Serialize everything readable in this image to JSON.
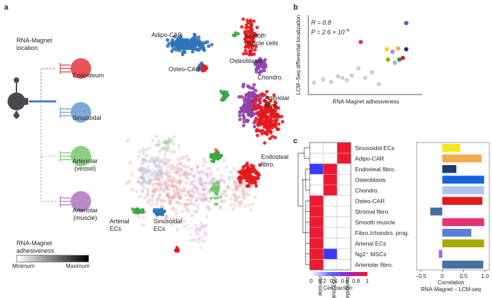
{
  "panel_a": {
    "label": "a",
    "location_title": "RNA-Magnet\nlocation",
    "locations": [
      {
        "name": "Endosteum",
        "color": "#e8545a"
      },
      {
        "name": "Sinusoidal",
        "color": "#7fa8d8"
      },
      {
        "name": "Arteriolar\n(vessel)",
        "color": "#8ccf84"
      },
      {
        "name": "Arteriolar\n(muscle)",
        "color": "#b98bcb"
      }
    ],
    "adhesiveness_title": "RNA-Magnet\nadhesiveness",
    "scale_min": "Minimum",
    "scale_max": "Maximum",
    "clusters": [
      {
        "name": "Adipo-CAR",
        "color": "#2f74b8"
      },
      {
        "name": "Smooth\nmuscle cells",
        "color": "#3aa845"
      },
      {
        "name": "Osteo-CAR",
        "color": "#2f74b8"
      },
      {
        "name": "Osteoblasts",
        "color": "#e31a1c"
      },
      {
        "name": "Chondro.",
        "color": "#e31a1c"
      },
      {
        "name": "Arteriolar\nfibro.",
        "color": "#8e44ad"
      },
      {
        "name": "Endosteal\nfibro.",
        "color": "#e31a1c"
      },
      {
        "name": "Arterial\nECs",
        "color": "#3aa845"
      },
      {
        "name": "Sinusoidal\nECs",
        "color": "#2f74b8"
      }
    ]
  },
  "panel_b": {
    "label": "b",
    "stat_r": "R = 0.8",
    "stat_p": "P = 2.6 × 10",
    "stat_p_exp": "−6",
    "xlabel": "RNA-Magnet adhesiveness",
    "ylabel": "LCM–Seq differential localization"
  },
  "panel_c": {
    "label": "c",
    "cell_types": [
      "Sinusoidal ECs",
      "Adipo-CAR",
      "Endosteal fibro.",
      "Osteoblasts",
      "Chondro.",
      "Osteo-CAR",
      "Stromal fibro.",
      "Smooth muscle",
      "Fibro./chondro. prog.",
      "Arterial ECs",
      "Ng2⁺ MSCs",
      "Arteriolar fibro."
    ],
    "columns": [
      "Arteriolar",
      "Endosteal",
      "Sinusoidal"
    ],
    "heatmap_values": [
      [
        0,
        0,
        1
      ],
      [
        0,
        0,
        1
      ],
      [
        0.2,
        1,
        0
      ],
      [
        0,
        1,
        0
      ],
      [
        0,
        1,
        0
      ],
      [
        1,
        0,
        0
      ],
      [
        1,
        0,
        0
      ],
      [
        1,
        0,
        0
      ],
      [
        1,
        0,
        0
      ],
      [
        1,
        0,
        0
      ],
      [
        1,
        0.15,
        0
      ],
      [
        1,
        0,
        0
      ]
    ],
    "colorbar_ticks": [
      "0",
      "0.2",
      "0.4",
      "0.6",
      "0.8",
      "1"
    ],
    "colorbar_label": "Cell fraction",
    "corr_xlabel": "Correlation\nRNA-Magnet – LCM-seq",
    "corr_ticks": [
      "−0.5",
      "0",
      "0.5",
      "1.0"
    ]
  },
  "chart_data": [
    {
      "type": "scatter",
      "panel": "b",
      "xlabel": "RNA-Magnet adhesiveness",
      "ylabel": "LCM–Seq differential localization",
      "annotations": [
        "R = 0.8",
        "P = 2.6 × 10−6"
      ],
      "points": [
        {
          "x": 0.05,
          "y": 0.15,
          "color": "#cfcfcf"
        },
        {
          "x": 0.13,
          "y": 0.19,
          "color": "#cfcfcf"
        },
        {
          "x": 0.2,
          "y": 0.16,
          "color": "#cfcfcf"
        },
        {
          "x": 0.26,
          "y": 0.23,
          "color": "#cfcfcf"
        },
        {
          "x": 0.3,
          "y": 0.21,
          "color": "#cfcfcf"
        },
        {
          "x": 0.34,
          "y": 0.18,
          "color": "#cfcfcf"
        },
        {
          "x": 0.38,
          "y": 0.24,
          "color": "#cfcfcf"
        },
        {
          "x": 0.44,
          "y": 0.33,
          "color": "#cfcfcf"
        },
        {
          "x": 0.5,
          "y": 0.21,
          "color": "#cfcfcf"
        },
        {
          "x": 0.56,
          "y": 0.28,
          "color": "#cfcfcf"
        },
        {
          "x": 0.62,
          "y": 0.13,
          "color": "#cfcfcf"
        },
        {
          "x": 0.46,
          "y": 0.66,
          "color": "#e8336e"
        },
        {
          "x": 0.69,
          "y": 0.57,
          "color": "#ffd60a"
        },
        {
          "x": 0.74,
          "y": 0.54,
          "color": "#c77dff"
        },
        {
          "x": 0.79,
          "y": 0.58,
          "color": "#ffa94d"
        },
        {
          "x": 0.86,
          "y": 0.57,
          "color": "#1e3a6e"
        },
        {
          "x": 0.7,
          "y": 0.44,
          "color": "#a8a800"
        },
        {
          "x": 0.8,
          "y": 0.44,
          "color": "#2e8b57"
        },
        {
          "x": 0.76,
          "y": 0.4,
          "color": "#8fb8e8"
        },
        {
          "x": 0.83,
          "y": 0.46,
          "color": "#e31a1c"
        },
        {
          "x": 0.86,
          "y": 0.9,
          "color": "#4a6fa5"
        }
      ]
    },
    {
      "type": "heatmap",
      "panel": "c",
      "rows": [
        "Sinusoidal ECs",
        "Adipo-CAR",
        "Endosteal fibro.",
        "Osteoblasts",
        "Chondro.",
        "Osteo-CAR",
        "Stromal fibro.",
        "Smooth muscle",
        "Fibro./chondro. prog.",
        "Arterial ECs",
        "Ng2⁺ MSCs",
        "Arteriolar fibro."
      ],
      "columns": [
        "Arteriolar",
        "Endosteal",
        "Sinusoidal"
      ],
      "values": [
        [
          0,
          0,
          1
        ],
        [
          0,
          0,
          1
        ],
        [
          0.2,
          1,
          0
        ],
        [
          0,
          1,
          0
        ],
        [
          0,
          1,
          0
        ],
        [
          1,
          0,
          0
        ],
        [
          1,
          0,
          0
        ],
        [
          1,
          0,
          0
        ],
        [
          1,
          0,
          0
        ],
        [
          1,
          0,
          0
        ],
        [
          1,
          0.15,
          0
        ],
        [
          1,
          0,
          0
        ]
      ],
      "colorbar_range": [
        0,
        1
      ],
      "colorbar_label": "Cell fraction"
    },
    {
      "type": "bar",
      "panel": "c",
      "orientation": "horizontal",
      "categories": [
        "Sinusoidal ECs",
        "Adipo-CAR",
        "Endosteal fibro.",
        "Osteoblasts",
        "Chondro.",
        "Osteo-CAR",
        "Stromal fibro.",
        "Smooth muscle",
        "Fibro./chondro. prog.",
        "Arterial ECs",
        "Ng2⁺ MSCs",
        "Arteriolar fibro."
      ],
      "values": [
        0.42,
        0.92,
        0.33,
        0.98,
        0.98,
        0.94,
        -0.28,
        0.98,
        0.68,
        0.98,
        -0.08,
        0.96
      ],
      "colors": [
        "#f5e616",
        "#f5a94d",
        "#1e3a6e",
        "#1565e0",
        "#a8c8f0",
        "#e31a1c",
        "#4a6fa5",
        "#e8336e",
        "#5b7fd6",
        "#a8a800",
        "#b05cf0",
        "#4a6fa5"
      ],
      "xlabel": "Correlation\nRNA-Magnet – LCM-seq",
      "xlim": [
        -0.6,
        1.1
      ]
    }
  ]
}
